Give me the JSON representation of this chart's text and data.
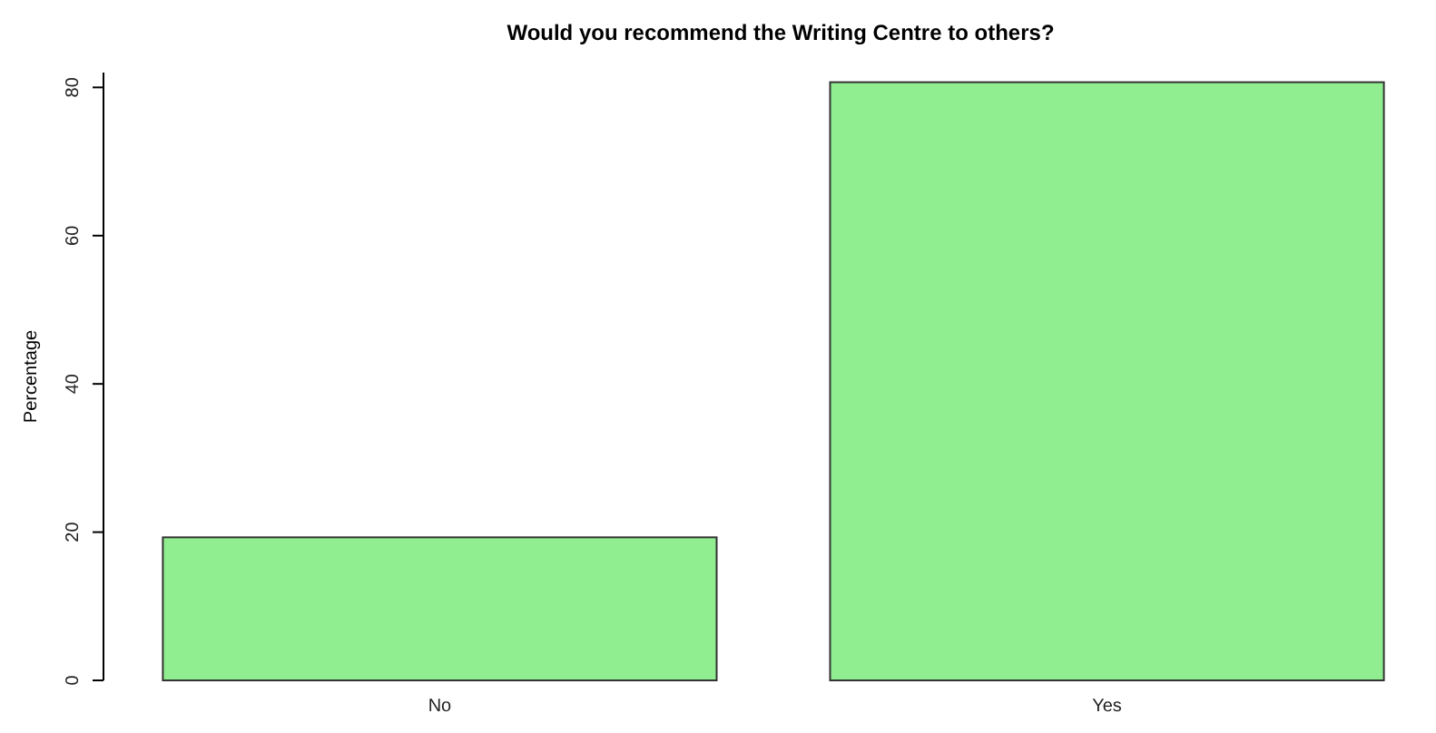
{
  "chart_data": {
    "type": "bar",
    "title": "Would you recommend the Writing Centre to others?",
    "ylabel": "Percentage",
    "categories": [
      "No",
      "Yes"
    ],
    "values": [
      19.3,
      80.7
    ],
    "color": "#90ee90",
    "ylim": [
      0,
      82
    ],
    "yticks": [
      0,
      20,
      40,
      60,
      80
    ],
    "grid": false
  }
}
